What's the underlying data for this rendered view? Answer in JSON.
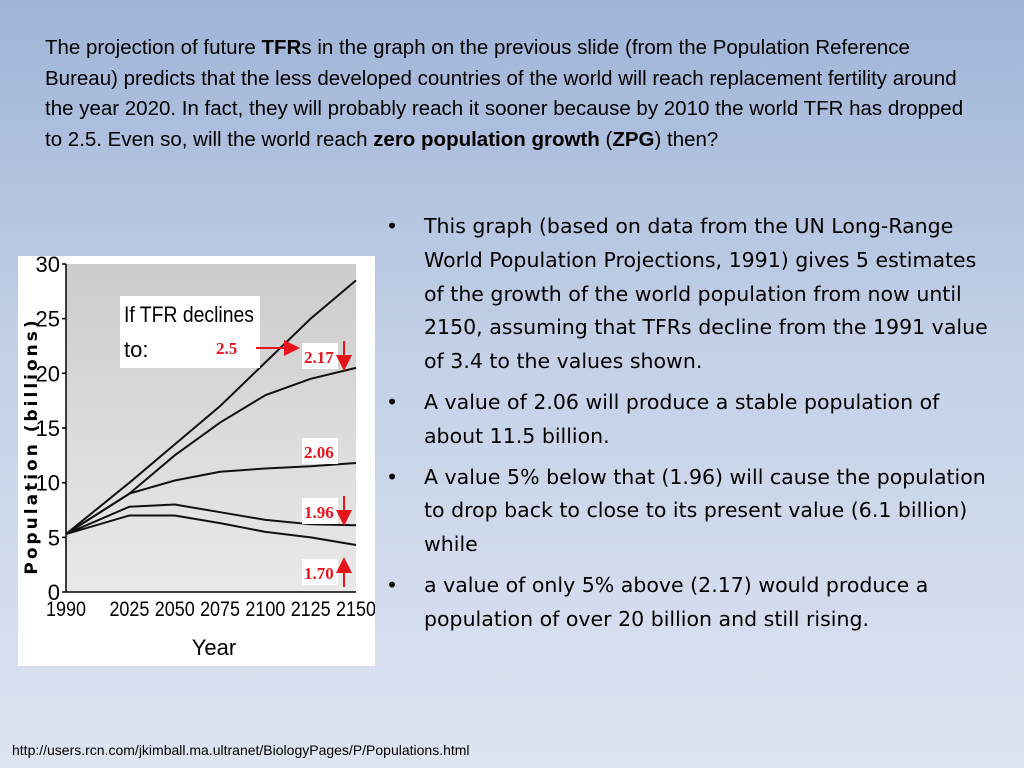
{
  "intro": {
    "p1": "The projection of future ",
    "tfr": "TFR",
    "p2": "s in the graph on the previous slide (from the Population Reference Bureau) predicts that the less developed countries of the world will reach replacement fertility around the year 2020. In fact, they will probably reach it sooner because by 2010 the world TFR has dropped to 2.5. Even so, will the world reach ",
    "zpg_bold": "zero population growth",
    "p3": " (",
    "zpg": "ZPG",
    "p4": ") then?"
  },
  "bullets": [
    "This graph (based on data from the UN Long-Range World Population Projections, 1991) gives 5 estimates of the growth of the world population from now until 2150, assuming that TFRs decline from the 1991 value of 3.4 to the values shown.",
    "A value of 2.06 will produce a stable population of about 11.5 billion.",
    "A value 5% below that (1.96) will cause the population to drop back to close to its present value (6.1 billion) while",
    "a value of only 5% above (2.17) would produce a population of over 20 billion and still rising."
  ],
  "bullet_symbol": "•",
  "source": "http://users.rcn.com/jkimball.ma.ultranet/BiologyPages/P/Populations.html",
  "chart_data": {
    "type": "line",
    "xlabel": "Year",
    "ylabel": "Population (billions)",
    "xlim": [
      1990,
      2150
    ],
    "ylim": [
      0,
      30
    ],
    "x_ticks": [
      "1990",
      "2025",
      "2050",
      "2075",
      "2100",
      "2125",
      "2150"
    ],
    "x_tick_values": [
      1990,
      2025,
      2050,
      2075,
      2100,
      2125,
      2150
    ],
    "y_ticks": [
      "0",
      "5",
      "10",
      "15",
      "20",
      "25",
      "30"
    ],
    "y_tick_values": [
      0,
      5,
      10,
      15,
      20,
      25,
      30
    ],
    "annotation": {
      "line1": "If TFR declines",
      "line2": "to:"
    },
    "series": [
      {
        "name": "2.5",
        "x": [
          1990,
          2025,
          2050,
          2075,
          2100,
          2125,
          2150
        ],
        "values": [
          5.3,
          10.0,
          13.5,
          17.0,
          21.0,
          25.0,
          28.5
        ]
      },
      {
        "name": "2.17",
        "x": [
          1990,
          2025,
          2050,
          2075,
          2100,
          2125,
          2150
        ],
        "values": [
          5.3,
          9.0,
          12.5,
          15.5,
          18.0,
          19.5,
          20.5
        ]
      },
      {
        "name": "2.06",
        "x": [
          1990,
          2025,
          2050,
          2075,
          2100,
          2125,
          2150
        ],
        "values": [
          5.3,
          9.0,
          10.2,
          11.0,
          11.3,
          11.5,
          11.8
        ]
      },
      {
        "name": "1.96",
        "x": [
          1990,
          2025,
          2050,
          2075,
          2100,
          2125,
          2150
        ],
        "values": [
          5.3,
          7.8,
          8.0,
          7.3,
          6.6,
          6.2,
          6.1
        ]
      },
      {
        "name": "1.70",
        "x": [
          1990,
          2025,
          2050,
          2075,
          2100,
          2125,
          2150
        ],
        "values": [
          5.3,
          7.0,
          7.0,
          6.3,
          5.5,
          5.0,
          4.3
        ]
      }
    ],
    "colors": {
      "lines": "#111111",
      "labels": "#e8141c",
      "plot_bg_top": "#cccccc",
      "plot_bg_bottom": "#e9e9e9"
    }
  }
}
